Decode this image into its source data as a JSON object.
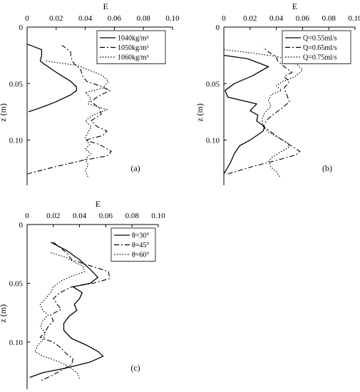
{
  "chart_data": [
    {
      "panel_label": "(a)",
      "type": "line",
      "xlabel": "E",
      "ylabel": "z (m)",
      "xlim": [
        0,
        0.1
      ],
      "ylim": [
        0,
        0.14
      ],
      "x_ticks": [
        "0",
        "0.02",
        "0.04",
        "0.06",
        "0.08",
        "0.10"
      ],
      "y_ticks": [
        "0",
        "0.05",
        "0.10"
      ],
      "y_tick_values": [
        0,
        0.05,
        0.1
      ],
      "y_inverted": true,
      "legend_position": "top-right",
      "series": [
        {
          "name": "1040kg/m³",
          "style": "solid",
          "points": [
            [
              0.0,
              0.015
            ],
            [
              0.01,
              0.02
            ],
            [
              0.01,
              0.025
            ],
            [
              0.009,
              0.03
            ],
            [
              0.012,
              0.033
            ],
            [
              0.02,
              0.04
            ],
            [
              0.03,
              0.048
            ],
            [
              0.034,
              0.053
            ],
            [
              0.034,
              0.056
            ],
            [
              0.03,
              0.06
            ],
            [
              0.02,
              0.066
            ],
            [
              0.01,
              0.071
            ],
            [
              0.001,
              0.075
            ]
          ]
        },
        {
          "name": "1050kg/m³",
          "style": "dashdot",
          "points": [
            [
              0.0,
              0.13
            ],
            [
              0.018,
              0.124
            ],
            [
              0.038,
              0.118
            ],
            [
              0.055,
              0.114
            ],
            [
              0.058,
              0.11
            ],
            [
              0.05,
              0.104
            ],
            [
              0.04,
              0.1
            ],
            [
              0.052,
              0.096
            ],
            [
              0.055,
              0.092
            ],
            [
              0.048,
              0.088
            ],
            [
              0.044,
              0.083
            ],
            [
              0.051,
              0.077
            ],
            [
              0.05,
              0.072
            ],
            [
              0.044,
              0.066
            ],
            [
              0.048,
              0.062
            ],
            [
              0.057,
              0.056
            ],
            [
              0.05,
              0.052
            ],
            [
              0.041,
              0.048
            ],
            [
              0.038,
              0.043
            ],
            [
              0.037,
              0.038
            ],
            [
              0.032,
              0.032
            ],
            [
              0.03,
              0.026
            ],
            [
              0.03,
              0.022
            ],
            [
              0.024,
              0.016
            ]
          ]
        },
        {
          "name": "1060kg/m³",
          "style": "dotted",
          "points": [
            [
              0.013,
              0.03
            ],
            [
              0.035,
              0.034
            ],
            [
              0.052,
              0.043
            ],
            [
              0.056,
              0.048
            ],
            [
              0.052,
              0.054
            ],
            [
              0.04,
              0.058
            ],
            [
              0.044,
              0.063
            ],
            [
              0.042,
              0.068
            ],
            [
              0.055,
              0.073
            ],
            [
              0.045,
              0.078
            ],
            [
              0.04,
              0.083
            ],
            [
              0.044,
              0.088
            ],
            [
              0.042,
              0.093
            ],
            [
              0.04,
              0.098
            ],
            [
              0.043,
              0.104
            ],
            [
              0.04,
              0.108
            ],
            [
              0.044,
              0.112
            ],
            [
              0.04,
              0.117
            ],
            [
              0.042,
              0.122
            ],
            [
              0.04,
              0.127
            ],
            [
              0.042,
              0.133
            ]
          ]
        }
      ]
    },
    {
      "panel_label": "(b)",
      "type": "line",
      "xlabel": "E",
      "ylabel": "z (m)",
      "xlim": [
        0,
        0.1
      ],
      "ylim": [
        0,
        0.14
      ],
      "x_ticks": [
        "0",
        "0.02",
        "0.04",
        "0.06",
        "0.08",
        "0.10"
      ],
      "y_ticks": [
        "0",
        "0.05",
        "0.10"
      ],
      "y_tick_values": [
        0,
        0.05,
        0.1
      ],
      "y_inverted": true,
      "legend_position": "top-right",
      "series": [
        {
          "name": "Q=0.55ml/s",
          "style": "solid",
          "points": [
            [
              0.0,
              0.025
            ],
            [
              0.018,
              0.028
            ],
            [
              0.034,
              0.035
            ],
            [
              0.022,
              0.043
            ],
            [
              0.008,
              0.05
            ],
            [
              0.001,
              0.056
            ],
            [
              0.003,
              0.062
            ],
            [
              0.018,
              0.066
            ],
            [
              0.025,
              0.068
            ],
            [
              0.02,
              0.074
            ],
            [
              0.026,
              0.078
            ],
            [
              0.025,
              0.083
            ],
            [
              0.031,
              0.088
            ],
            [
              0.03,
              0.092
            ],
            [
              0.02,
              0.1
            ],
            [
              0.012,
              0.105
            ],
            [
              0.008,
              0.112
            ],
            [
              0.005,
              0.12
            ],
            [
              0.002,
              0.126
            ],
            [
              0.0,
              0.13
            ]
          ]
        },
        {
          "name": "Q=0.65ml/s",
          "style": "dashdot",
          "points": [
            [
              0.003,
              0.13
            ],
            [
              0.02,
              0.124
            ],
            [
              0.04,
              0.118
            ],
            [
              0.055,
              0.113
            ],
            [
              0.058,
              0.11
            ],
            [
              0.05,
              0.104
            ],
            [
              0.042,
              0.098
            ],
            [
              0.035,
              0.092
            ],
            [
              0.03,
              0.088
            ],
            [
              0.033,
              0.082
            ],
            [
              0.038,
              0.077
            ],
            [
              0.044,
              0.072
            ],
            [
              0.05,
              0.066
            ],
            [
              0.048,
              0.06
            ],
            [
              0.046,
              0.054
            ],
            [
              0.05,
              0.048
            ],
            [
              0.046,
              0.044
            ],
            [
              0.052,
              0.04
            ],
            [
              0.046,
              0.035
            ],
            [
              0.041,
              0.03
            ],
            [
              0.04,
              0.026
            ],
            [
              0.034,
              0.022
            ],
            [
              0.03,
              0.018
            ]
          ]
        },
        {
          "name": "Q=0.75ml/s",
          "style": "dotted",
          "points": [
            [
              0.0,
              0.02
            ],
            [
              0.022,
              0.023
            ],
            [
              0.04,
              0.026
            ],
            [
              0.05,
              0.029
            ],
            [
              0.056,
              0.033
            ],
            [
              0.06,
              0.038
            ],
            [
              0.054,
              0.044
            ],
            [
              0.045,
              0.048
            ],
            [
              0.04,
              0.052
            ],
            [
              0.044,
              0.056
            ],
            [
              0.036,
              0.06
            ],
            [
              0.034,
              0.065
            ],
            [
              0.036,
              0.07
            ],
            [
              0.031,
              0.076
            ],
            [
              0.029,
              0.082
            ],
            [
              0.03,
              0.088
            ],
            [
              0.034,
              0.093
            ],
            [
              0.042,
              0.098
            ],
            [
              0.048,
              0.102
            ],
            [
              0.05,
              0.106
            ],
            [
              0.044,
              0.11
            ],
            [
              0.037,
              0.115
            ],
            [
              0.034,
              0.119
            ],
            [
              0.036,
              0.124
            ],
            [
              0.04,
              0.128
            ],
            [
              0.043,
              0.133
            ]
          ]
        }
      ]
    },
    {
      "panel_label": "(c)",
      "type": "line",
      "xlabel": "E",
      "ylabel": "z (m)",
      "xlim": [
        0,
        0.1
      ],
      "ylim": [
        0,
        0.14
      ],
      "x_ticks": [
        "0",
        "0.02",
        "0.04",
        "0.06",
        "0.08",
        "0.10"
      ],
      "y_ticks": [
        "0",
        "0.05",
        "0.10"
      ],
      "y_tick_values": [
        0,
        0.05,
        0.1
      ],
      "y_inverted": true,
      "legend_position": "top-right",
      "series": [
        {
          "name": "θ=30°",
          "style": "solid",
          "points": [
            [
              0.018,
              0.015
            ],
            [
              0.03,
              0.022
            ],
            [
              0.04,
              0.03
            ],
            [
              0.048,
              0.038
            ],
            [
              0.054,
              0.045
            ],
            [
              0.048,
              0.05
            ],
            [
              0.035,
              0.053
            ],
            [
              0.042,
              0.058
            ],
            [
              0.04,
              0.063
            ],
            [
              0.036,
              0.068
            ],
            [
              0.038,
              0.073
            ],
            [
              0.032,
              0.078
            ],
            [
              0.028,
              0.084
            ],
            [
              0.028,
              0.09
            ],
            [
              0.034,
              0.097
            ],
            [
              0.046,
              0.103
            ],
            [
              0.054,
              0.108
            ],
            [
              0.058,
              0.112
            ],
            [
              0.048,
              0.117
            ],
            [
              0.03,
              0.122
            ],
            [
              0.012,
              0.126
            ],
            [
              0.002,
              0.13
            ]
          ]
        },
        {
          "name": "θ=45°",
          "style": "dashdot",
          "points": [
            [
              0.02,
              0.015
            ],
            [
              0.03,
              0.024
            ],
            [
              0.034,
              0.03
            ],
            [
              0.048,
              0.035
            ],
            [
              0.062,
              0.04
            ],
            [
              0.063,
              0.046
            ],
            [
              0.05,
              0.05
            ],
            [
              0.034,
              0.053
            ],
            [
              0.025,
              0.058
            ],
            [
              0.02,
              0.063
            ],
            [
              0.023,
              0.068
            ],
            [
              0.026,
              0.072
            ],
            [
              0.018,
              0.077
            ],
            [
              0.02,
              0.082
            ],
            [
              0.016,
              0.087
            ],
            [
              0.014,
              0.091
            ],
            [
              0.01,
              0.096
            ],
            [
              0.02,
              0.1
            ],
            [
              0.026,
              0.105
            ],
            [
              0.03,
              0.11
            ],
            [
              0.035,
              0.114
            ],
            [
              0.034,
              0.119
            ],
            [
              0.026,
              0.124
            ],
            [
              0.018,
              0.129
            ],
            [
              0.01,
              0.133
            ]
          ]
        },
        {
          "name": "θ=60°",
          "style": "dotted",
          "points": [
            [
              0.018,
              0.024
            ],
            [
              0.03,
              0.028
            ],
            [
              0.036,
              0.032
            ],
            [
              0.042,
              0.035
            ],
            [
              0.044,
              0.04
            ],
            [
              0.034,
              0.044
            ],
            [
              0.026,
              0.048
            ],
            [
              0.02,
              0.053
            ],
            [
              0.018,
              0.058
            ],
            [
              0.014,
              0.063
            ],
            [
              0.01,
              0.068
            ],
            [
              0.012,
              0.073
            ],
            [
              0.016,
              0.077
            ],
            [
              0.012,
              0.082
            ],
            [
              0.01,
              0.087
            ],
            [
              0.014,
              0.092
            ],
            [
              0.012,
              0.098
            ],
            [
              0.008,
              0.103
            ],
            [
              0.006,
              0.108
            ],
            [
              0.012,
              0.112
            ],
            [
              0.025,
              0.117
            ],
            [
              0.032,
              0.121
            ],
            [
              0.038,
              0.126
            ],
            [
              0.04,
              0.131
            ]
          ]
        }
      ]
    }
  ]
}
